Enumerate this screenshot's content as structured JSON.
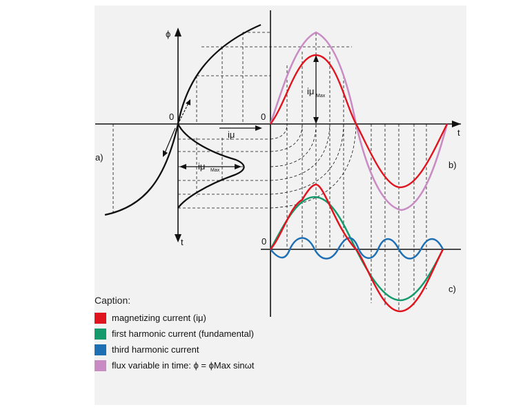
{
  "labels": {
    "phi": "ϕ",
    "t_left": "t",
    "t_right": "t",
    "zero_left": "0",
    "zero_right": "0",
    "zero_c": "0",
    "a": "a)",
    "b": "b)",
    "c": "c)",
    "i_mu": "iμ",
    "i_mu_max_main": "iμ",
    "i_mu_max_sub": "Max",
    "i_mu_max_main2": "iμ",
    "i_mu_max_sub2": "Max"
  },
  "caption": {
    "title": "Caption:",
    "items": [
      {
        "text": "magnetizing current (iμ)",
        "color": "#e0141e"
      },
      {
        "text": "first harmonic current (fundamental)",
        "color": "#159a6b"
      },
      {
        "text": "third harmonic current",
        "color": "#1e6fb3"
      },
      {
        "text": "flux variable in time: ϕ = ϕMax sinωt",
        "color": "#c98bc4"
      }
    ]
  },
  "colors": {
    "magnetizing": "#e0141e",
    "fundamental": "#159a6b",
    "third": "#1e6fb3",
    "flux": "#c98bc4"
  }
}
